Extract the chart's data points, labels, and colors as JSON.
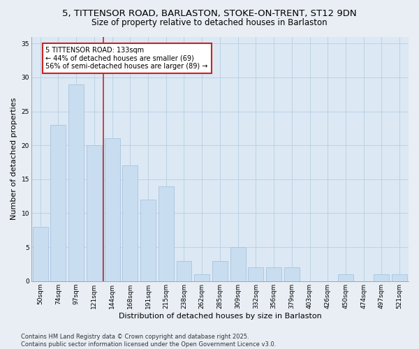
{
  "title_line1": "5, TITTENSOR ROAD, BARLASTON, STOKE-ON-TRENT, ST12 9DN",
  "title_line2": "Size of property relative to detached houses in Barlaston",
  "xlabel": "Distribution of detached houses by size in Barlaston",
  "ylabel": "Number of detached properties",
  "categories": [
    "50sqm",
    "74sqm",
    "97sqm",
    "121sqm",
    "144sqm",
    "168sqm",
    "191sqm",
    "215sqm",
    "238sqm",
    "262sqm",
    "285sqm",
    "309sqm",
    "332sqm",
    "356sqm",
    "379sqm",
    "403sqm",
    "426sqm",
    "450sqm",
    "474sqm",
    "497sqm",
    "521sqm"
  ],
  "values": [
    8,
    23,
    29,
    20,
    21,
    17,
    12,
    14,
    3,
    1,
    3,
    5,
    2,
    2,
    2,
    0,
    0,
    1,
    0,
    1,
    1
  ],
  "bar_color": "#c9ddf0",
  "bar_edge_color": "#a8c4e0",
  "vline_x_index": 3,
  "vline_color": "#cc2222",
  "annotation_text": "5 TITTENSOR ROAD: 133sqm\n← 44% of detached houses are smaller (69)\n56% of semi-detached houses are larger (89) →",
  "annotation_box_facecolor": "#ffffff",
  "annotation_edge_color": "#cc2222",
  "ylim": [
    0,
    36
  ],
  "yticks": [
    0,
    5,
    10,
    15,
    20,
    25,
    30,
    35
  ],
  "footer_text": "Contains HM Land Registry data © Crown copyright and database right 2025.\nContains public sector information licensed under the Open Government Licence v3.0.",
  "bg_color": "#e8eef4",
  "plot_bg_color": "#dce8f4",
  "grid_color": "#b8cfe0",
  "title_fontsize": 9.5,
  "subtitle_fontsize": 8.5,
  "tick_fontsize": 6.5,
  "label_fontsize": 8,
  "footer_fontsize": 6,
  "annotation_fontsize": 7
}
